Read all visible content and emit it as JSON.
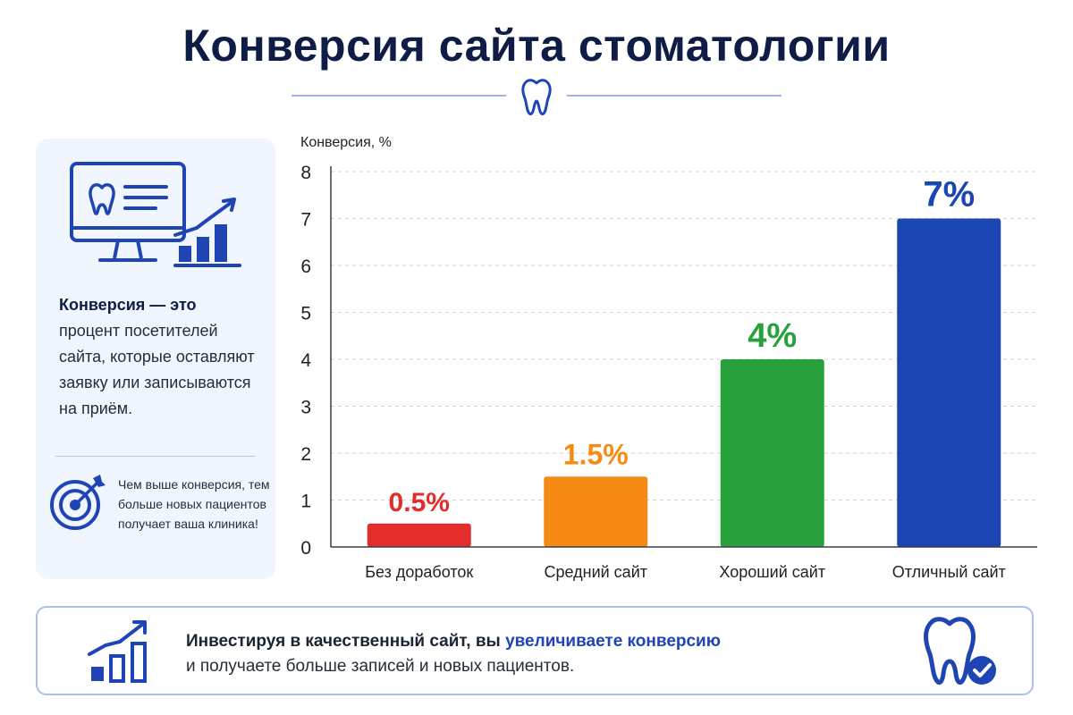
{
  "page": {
    "title": "Конверсия сайта стоматологии"
  },
  "sidebar": {
    "definition_term": "Конверсия — это",
    "definition_text": "процент посетителей сайта, которые оставляют заявку или записываются на приём.",
    "note": "Чем выше конверсия, тем больше новых пациентов получает ваша клиника!"
  },
  "footer": {
    "text_bold": "Инвестируя в качественный сайт, вы",
    "text_accent": "увеличиваете конверсию",
    "text_rest": "и получаете больше записей и новых пациентов."
  },
  "icons": {
    "title": "tooth-icon",
    "sidebar_top": "monitor-growth-icon",
    "sidebar_note": "target-arrow-icon",
    "footer_left": "growth-chart-icon",
    "footer_right": "tooth-check-icon"
  },
  "colors": {
    "title": "#0e1c46",
    "accent": "#1f45b5",
    "sidebar_bg": "#f1f5fd",
    "footer_border": "#a9c1ea"
  },
  "chart_data": {
    "type": "bar",
    "ylabel": "Конверсия, %",
    "xlabel": "",
    "ylim": [
      0,
      8
    ],
    "yticks": [
      0,
      1,
      2,
      3,
      4,
      5,
      6,
      7,
      8
    ],
    "grid": true,
    "categories": [
      "Без доработок",
      "Средний сайт",
      "Хороший сайт",
      "Отличный сайт"
    ],
    "values": [
      0.5,
      1.5,
      4,
      7
    ],
    "value_labels": [
      "0.5%",
      "1.5%",
      "4%",
      "7%"
    ],
    "colors": [
      "#e32d2d",
      "#f68b13",
      "#28a03c",
      "#1a45b2"
    ]
  }
}
